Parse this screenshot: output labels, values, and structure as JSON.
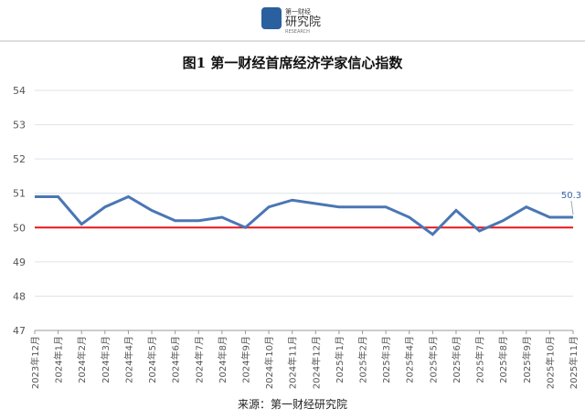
{
  "logo": {
    "top": "第一财经",
    "main": "研究院",
    "sub": "RESEARCH"
  },
  "chart_data": {
    "type": "line",
    "title": "图1  第一财经首席经济学家信心指数",
    "source": "来源：第一财经研究院",
    "categories": [
      "2023年12月",
      "2024年1月",
      "2024年2月",
      "2024年3月",
      "2024年4月",
      "2024年5月",
      "2024年6月",
      "2024年7月",
      "2024年8月",
      "2024年9月",
      "2024年10月",
      "2024年11月",
      "2024年12月",
      "2025年1月",
      "2025年2月",
      "2025年3月",
      "2025年4月",
      "2025年5月",
      "2025年6月",
      "2025年7月",
      "2025年8月",
      "2025年9月",
      "2025年10月",
      "2025年11月"
    ],
    "values": [
      50.9,
      50.9,
      50.1,
      50.6,
      50.9,
      50.5,
      50.2,
      50.2,
      50.3,
      50.0,
      50.6,
      50.8,
      50.7,
      50.6,
      50.6,
      50.6,
      50.3,
      49.8,
      50.5,
      49.9,
      50.2,
      50.6,
      50.3,
      50.3
    ],
    "color": "#4a76b4",
    "data_label_index": 23,
    "reference_line": {
      "value": 50,
      "color": "#e8141b"
    },
    "ylim": [
      47,
      54
    ],
    "yticks": [
      47,
      48,
      49,
      50,
      51,
      52,
      53,
      54
    ],
    "grid": true
  }
}
